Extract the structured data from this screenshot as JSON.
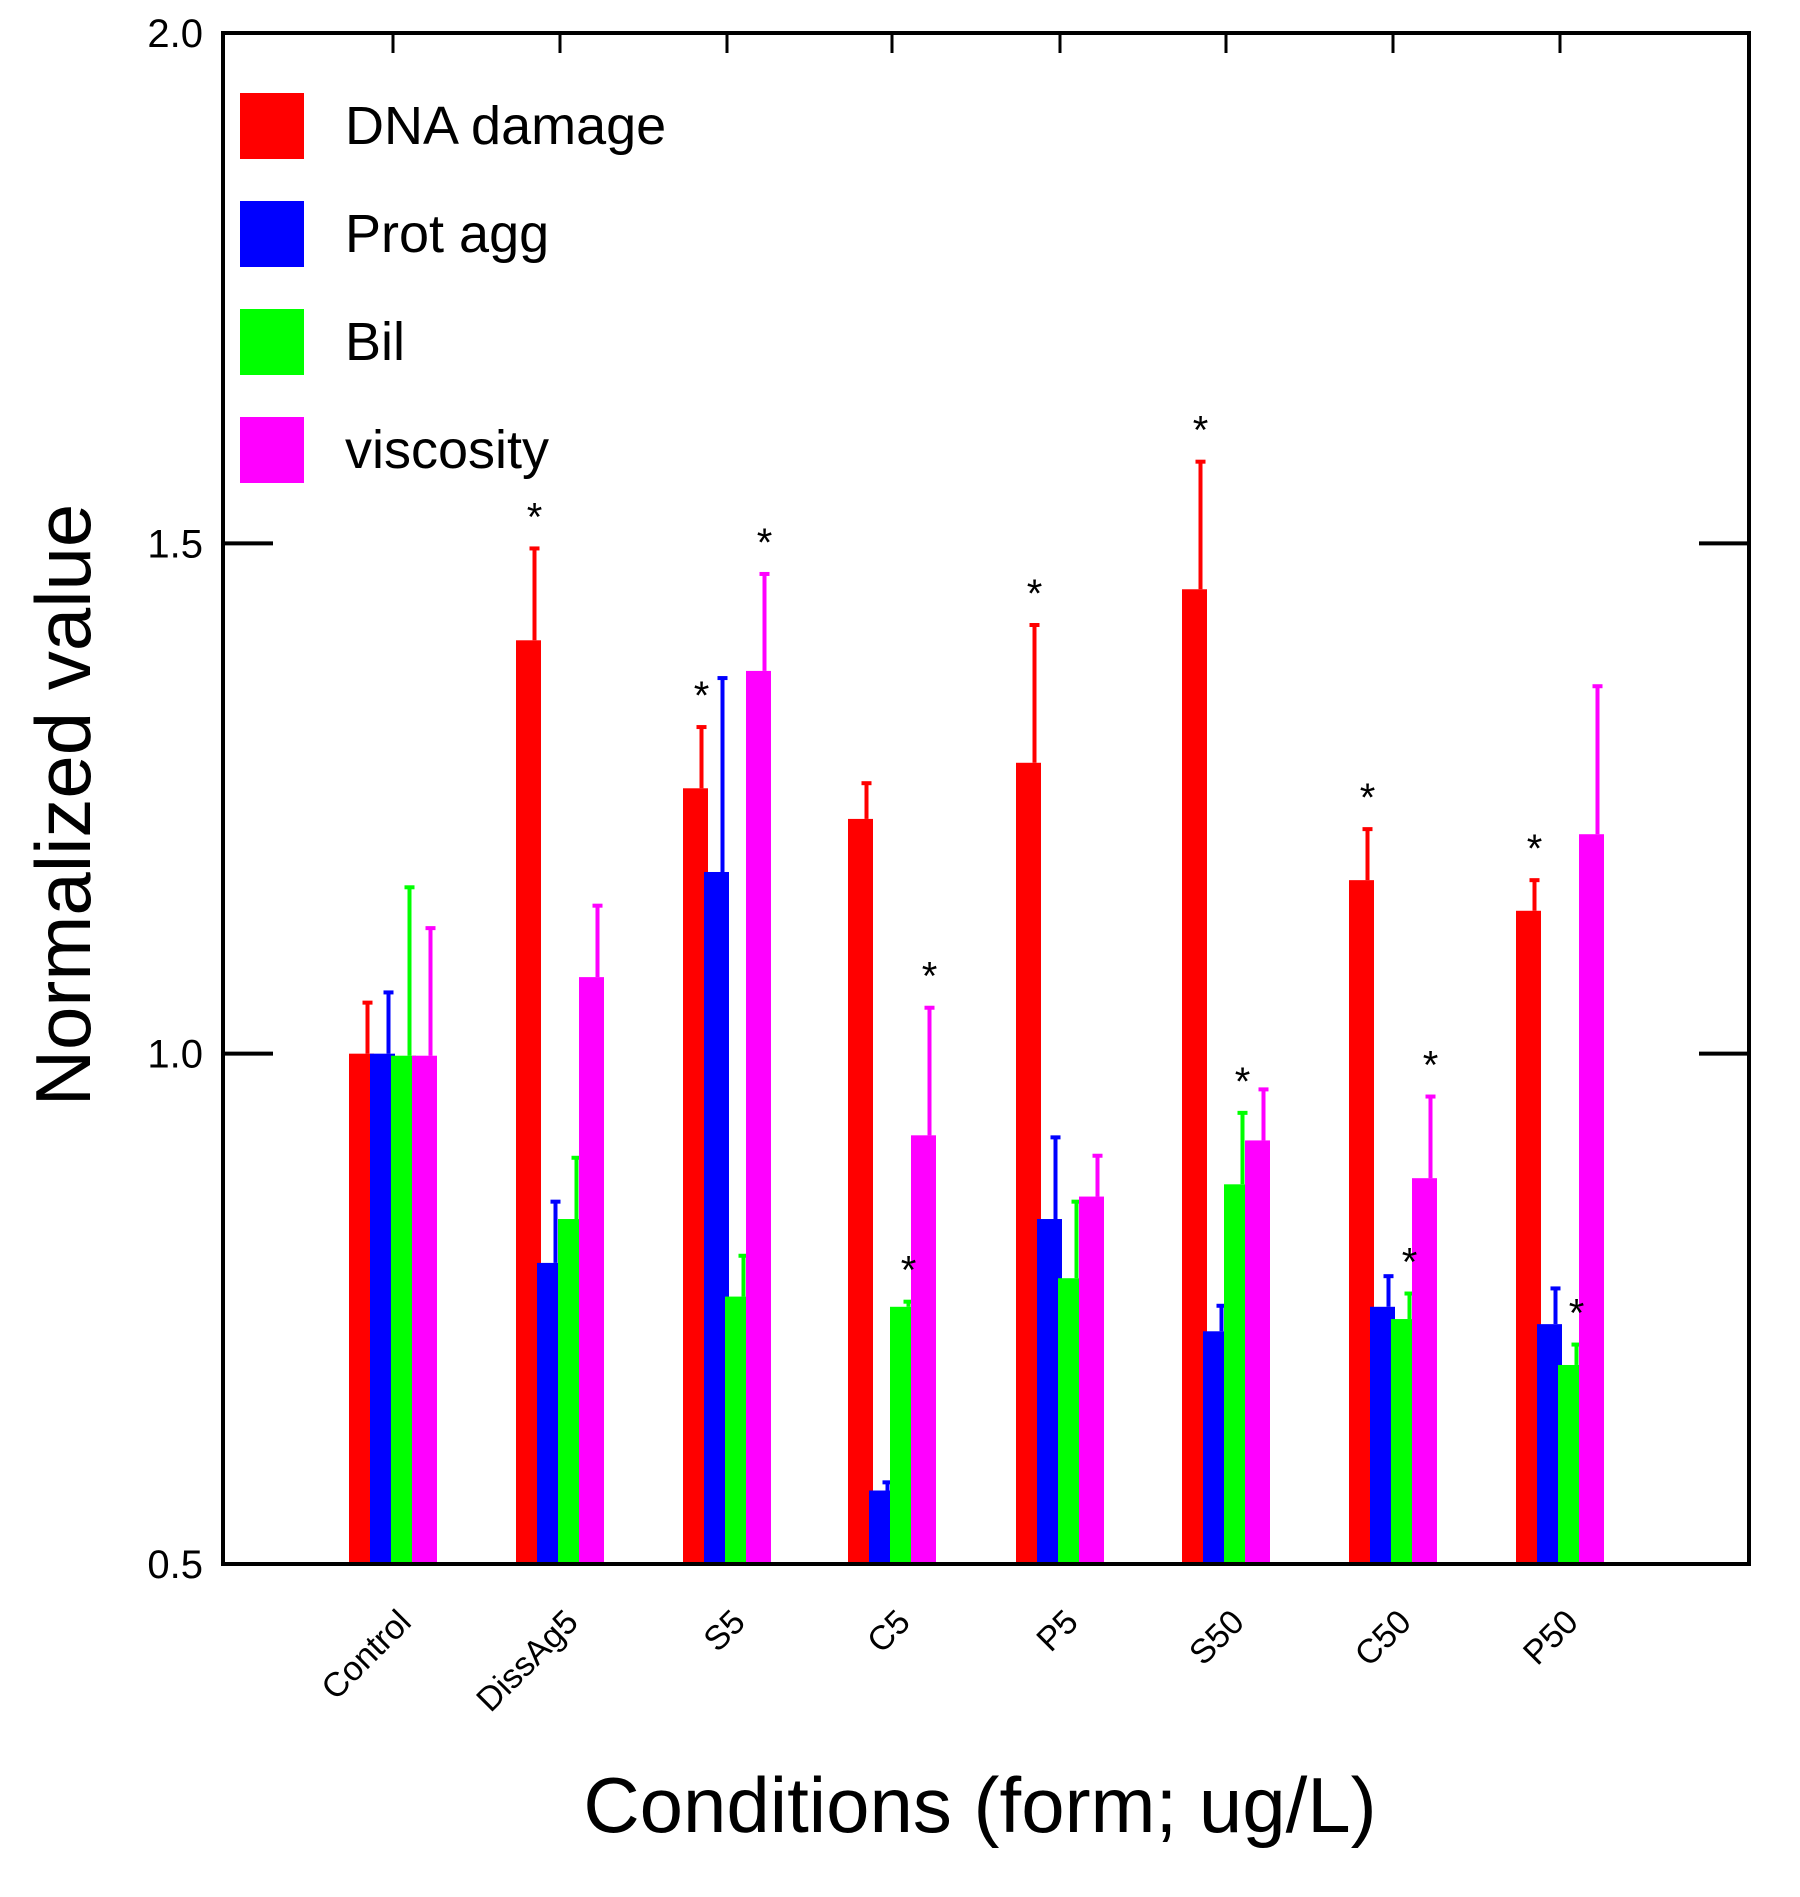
{
  "chart_data": {
    "type": "bar",
    "title": "",
    "xlabel": "Conditions (form; ug/L)",
    "ylabel": "Normalized value",
    "ylim": [
      0.5,
      2.0
    ],
    "yticks": [
      0.5,
      1.0,
      1.5,
      2.0
    ],
    "ytick_labels": [
      "0.5",
      "1.0",
      "1.5",
      "2.0"
    ],
    "categories": [
      "Control",
      "DissAg5",
      "S5",
      "C5",
      "P5",
      "S50",
      "C50",
      "P50"
    ],
    "legend_position": "top-left",
    "series": [
      {
        "name": "DNA damage",
        "color": "#ff0000",
        "values": [
          1.0,
          1.405,
          1.26,
          1.23,
          1.285,
          1.455,
          1.17,
          1.14
        ],
        "errors": [
          0.05,
          0.09,
          0.06,
          0.035,
          0.135,
          0.125,
          0.05,
          0.03
        ],
        "significant": [
          false,
          true,
          true,
          false,
          true,
          true,
          true,
          true
        ]
      },
      {
        "name": "Prot agg",
        "color": "#0000ff",
        "values": [
          1.0,
          0.795,
          1.178,
          0.572,
          0.838,
          0.728,
          0.752,
          0.735
        ],
        "errors": [
          0.06,
          0.06,
          0.19,
          0.008,
          0.08,
          0.025,
          0.03,
          0.035
        ],
        "significant": [
          false,
          false,
          false,
          false,
          false,
          false,
          false,
          false
        ]
      },
      {
        "name": "Bil",
        "color": "#00ff00",
        "values": [
          0.998,
          0.838,
          0.762,
          0.752,
          0.78,
          0.872,
          0.74,
          0.695
        ],
        "errors": [
          0.165,
          0.06,
          0.04,
          0.005,
          0.075,
          0.07,
          0.025,
          0.02
        ],
        "significant": [
          false,
          false,
          false,
          true,
          false,
          true,
          true,
          true
        ]
      },
      {
        "name": "viscosity",
        "color": "#ff00ff",
        "values": [
          0.998,
          1.075,
          1.375,
          0.92,
          0.86,
          0.915,
          0.878,
          1.215
        ],
        "errors": [
          0.125,
          0.07,
          0.095,
          0.125,
          0.04,
          0.05,
          0.08,
          0.145
        ],
        "significant": [
          false,
          false,
          true,
          true,
          false,
          false,
          true,
          false
        ]
      }
    ],
    "annotations": {
      "significance_marker": "*"
    }
  }
}
